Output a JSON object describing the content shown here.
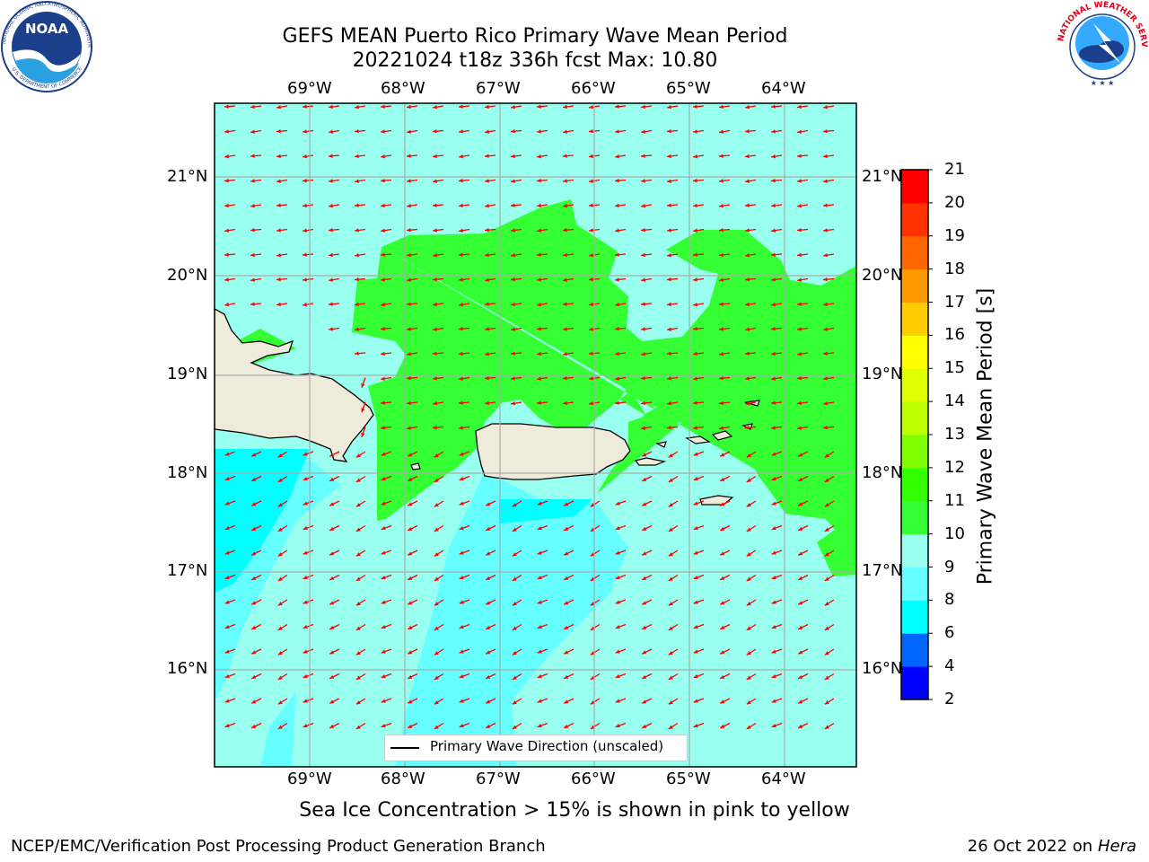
{
  "title": {
    "line1": "GEFS MEAN Puerto Rico Primary Wave Mean Period",
    "line2": "20221024 t18z 336h fcst   Max: 10.80"
  },
  "map": {
    "lon_labels": [
      "69°W",
      "68°W",
      "67°W",
      "66°W",
      "65°W",
      "64°W"
    ],
    "lat_labels": [
      "21°N",
      "20°N",
      "19°N",
      "18°N",
      "17°N",
      "16°N"
    ],
    "lon_range": [
      -70.0,
      -63.25
    ],
    "lat_range": [
      15.0,
      21.75
    ],
    "arrow_color": "#ff0000",
    "land_color": "#efebda",
    "legend_label": "Primary Wave Direction (unscaled)"
  },
  "colorbar": {
    "label": "Primary Wave Mean Period [s]",
    "ticks": [
      "2",
      "4",
      "6",
      "8",
      "9",
      "10",
      "11",
      "12",
      "13",
      "14",
      "15",
      "16",
      "17",
      "18",
      "19",
      "20",
      "21"
    ],
    "colors": [
      "#0000ff",
      "#0066ff",
      "#00ffff",
      "#66ffff",
      "#99ffee",
      "#33ff33",
      "#33ff00",
      "#80ff00",
      "#bbff00",
      "#ddff00",
      "#ffff00",
      "#ffcc00",
      "#ff9900",
      "#ff6600",
      "#ff3300",
      "#ff0000"
    ]
  },
  "caption": "Sea Ice Concentration > 15% is shown in pink to yellow",
  "footer": {
    "left": "NCEP/EMC/Verification Post Processing Product Generation Branch",
    "right_date": "26 Oct 2022 on",
    "right_host": "Hera"
  },
  "logos": {
    "noaa_text": "NOAA",
    "noaa_ring": "NATIONAL OCEANIC AND ATMOSPHERIC ADMINISTRATION",
    "noaa_ring2": "U.S. DEPARTMENT OF COMMERCE",
    "nws_ring": "NATIONAL WEATHER SERVICE"
  }
}
